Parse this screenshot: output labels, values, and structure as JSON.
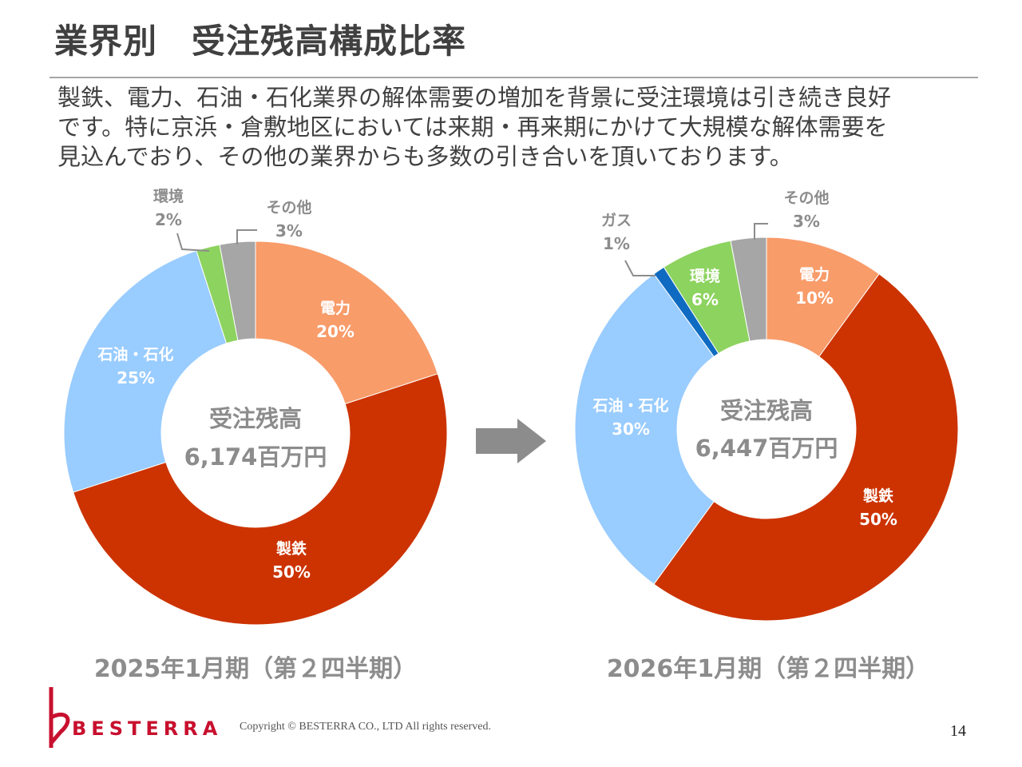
{
  "header": {
    "title": "業界別　受注残高構成比率",
    "summary_lines": [
      "製鉄、電力、石油・石化業界の解体需要の増加を背景に受注環境は引き続き良好",
      "です。特に京浜・倉敷地区においては来期・再来期にかけて大規模な解体需要を",
      "見込んでおり、その他の業界からも多数の引き合いを頂いております。"
    ]
  },
  "chart_data": [
    {
      "type": "pie",
      "subtype": "donut",
      "period_label": "2025年1月期（第２四半期）",
      "center_label": "受注残高",
      "center_value": "6,174百万円",
      "slices": [
        {
          "name": "電力",
          "value": 20,
          "label": "20%",
          "color": "#F89C6A"
        },
        {
          "name": "製鉄",
          "value": 50,
          "label": "50%",
          "color": "#CC3300"
        },
        {
          "name": "石油・石化",
          "value": 25,
          "label": "25%",
          "color": "#99CCFF"
        },
        {
          "name": "環境",
          "value": 2,
          "label": "2%",
          "color": "#8DD35F"
        },
        {
          "name": "その他",
          "value": 3,
          "label": "3%",
          "color": "#A6A6A6"
        }
      ]
    },
    {
      "type": "pie",
      "subtype": "donut",
      "period_label": "2026年1月期（第２四半期）",
      "center_label": "受注残高",
      "center_value": "6,447百万円",
      "slices": [
        {
          "name": "電力",
          "value": 10,
          "label": "10%",
          "color": "#F89C6A"
        },
        {
          "name": "製鉄",
          "value": 50,
          "label": "50%",
          "color": "#CC3300"
        },
        {
          "name": "石油・石化",
          "value": 30,
          "label": "30%",
          "color": "#99CCFF"
        },
        {
          "name": "ガス",
          "value": 1,
          "label": "1%",
          "color": "#0F6BC1"
        },
        {
          "name": "環境",
          "value": 6,
          "label": "6%",
          "color": "#8DD35F"
        },
        {
          "name": "その他",
          "value": 3,
          "label": "3%",
          "color": "#A6A6A6"
        }
      ]
    }
  ],
  "footer": {
    "brand": "BESTERRA",
    "copyright": "Copyright © BESTERRA CO., LTD All rights reserved.",
    "page_number": "14"
  },
  "colors": {
    "text": "#404040",
    "muted": "#8C8C8C",
    "arrow": "#8C8C8C",
    "brand_red": "#C8102E"
  }
}
